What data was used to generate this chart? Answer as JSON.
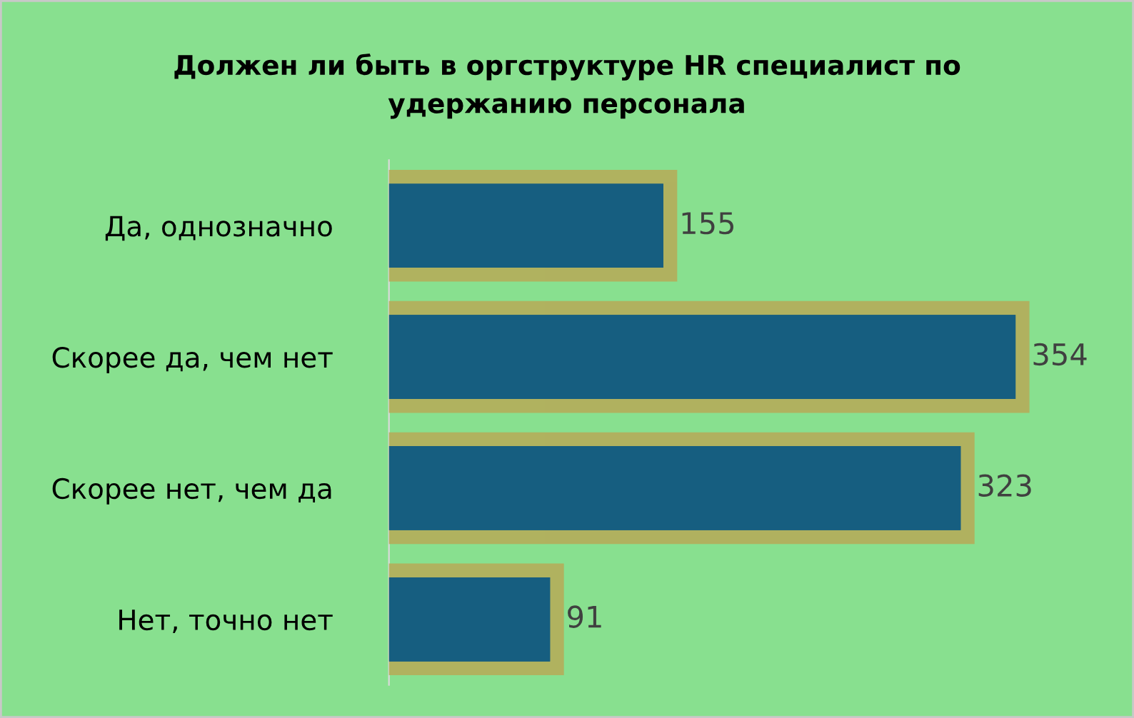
{
  "chart_data": {
    "type": "bar",
    "orientation": "horizontal",
    "title": "Должен ли быть в оргструктуре HR специалист по\nудержанию персонала",
    "categories": [
      "Да, однозначно",
      "Скорее да, чем нет",
      "Скорее нет, чем да",
      "Нет, точно нет"
    ],
    "values": [
      155,
      354,
      323,
      91
    ],
    "color": "#165e80",
    "data_labels": true,
    "grid": false,
    "legend": false
  }
}
